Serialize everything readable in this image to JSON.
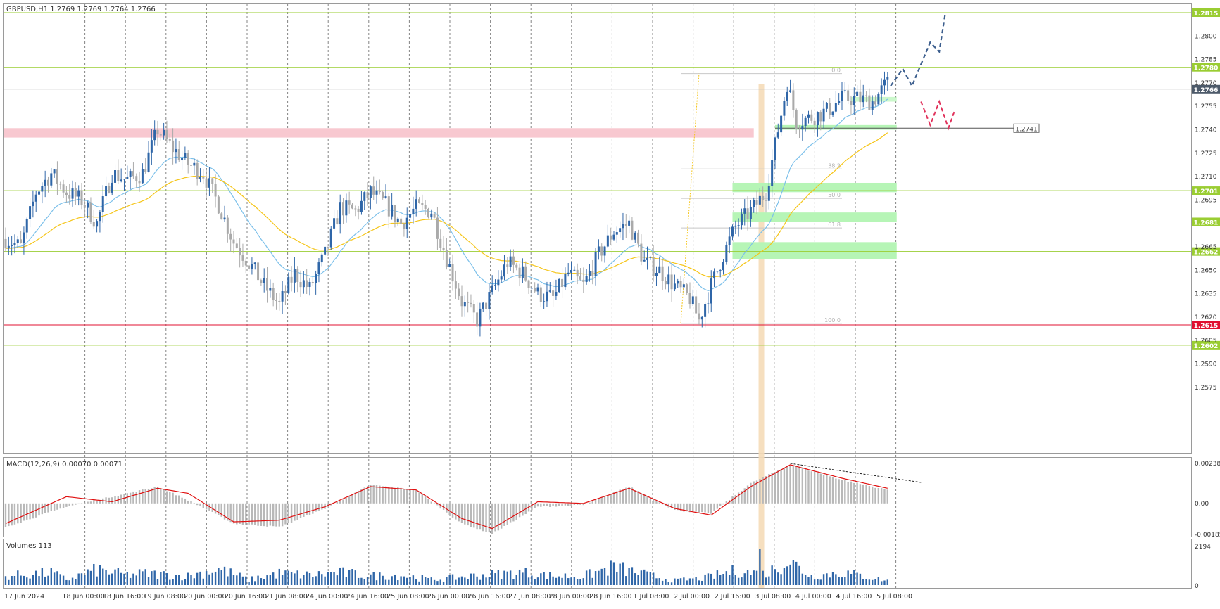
{
  "header": {
    "symbol_line": "GBPUSD,H1  1.2769 1.2769 1.2764 1.2766"
  },
  "colors": {
    "bull": "#2f66a8",
    "bear": "#aaaaaa",
    "ma_fast": "#7cc0ea",
    "ma_slow": "#f5c518",
    "level_line": "#9acd32",
    "level_red": "#e01030",
    "current_price": "#4d5a6a",
    "zone_green": "#b6f5b6",
    "zone_pink": "#f8c8d0",
    "macd_signal": "#e01010",
    "macd_hist": "#b8b8b8",
    "volume": "#2f66a8",
    "forecast_up": "#3d5f8e",
    "forecast_down": "#e0305a",
    "highlight_bar": "#f5dcb8"
  },
  "chart_data": [
    {
      "type": "candlestick",
      "name": "main-price",
      "ylim": [
        1.2565,
        1.2825
      ],
      "y_ticks": [
        "1.2800",
        "1.2785",
        "1.2770",
        "1.2755",
        "1.2740",
        "1.2725",
        "1.2710",
        "1.2695",
        "1.2665",
        "1.2650",
        "1.2635",
        "1.2620",
        "1.2605",
        "1.2590",
        "1.2575"
      ],
      "price_levels": [
        {
          "label": "1.2815",
          "value": 1.2815,
          "kind": "green"
        },
        {
          "label": "1.2780",
          "value": 1.278,
          "kind": "green"
        },
        {
          "label": "1.2701",
          "value": 1.2701,
          "kind": "green"
        },
        {
          "label": "1.2681",
          "value": 1.2681,
          "kind": "green"
        },
        {
          "label": "1.2662",
          "value": 1.2662,
          "kind": "green"
        },
        {
          "label": "1.2615",
          "value": 1.2615,
          "kind": "red"
        },
        {
          "label": "1.2602",
          "value": 1.2602,
          "kind": "green"
        }
      ],
      "current_price": {
        "label": "1.2766",
        "value": 1.2766
      },
      "marked_level": {
        "label": "1.2741",
        "value": 1.2741
      },
      "x_labels": [
        "17 Jun 2024",
        "18 Jun 00:00",
        "18 Jun 16:00",
        "19 Jun 08:00",
        "20 Jun 00:00",
        "20 Jun 16:00",
        "21 Jun 08:00",
        "24 Jun 00:00",
        "24 Jun 16:00",
        "25 Jun 08:00",
        "26 Jun 00:00",
        "26 Jun 16:00",
        "27 Jun 08:00",
        "28 Jun 00:00",
        "28 Jun 16:00",
        "1 Jul 08:00",
        "2 Jul 00:00",
        "2 Jul 16:00",
        "3 Jul 08:00",
        "4 Jul 00:00",
        "4 Jul 16:00",
        "5 Jul 08:00"
      ],
      "fibonacci": {
        "levels": [
          "0.0",
          "38.2",
          "50.0",
          "61.8",
          "100.0"
        ],
        "high": 1.2776,
        "low": 1.2616
      },
      "close_path": [
        [
          0,
          1.267
        ],
        [
          5,
          1.2665
        ],
        [
          10,
          1.27
        ],
        [
          15,
          1.2712
        ],
        [
          20,
          1.27
        ],
        [
          25,
          1.2695
        ],
        [
          30,
          1.268
        ],
        [
          35,
          1.2712
        ],
        [
          40,
          1.2708
        ],
        [
          45,
          1.2712
        ],
        [
          50,
          1.274
        ],
        [
          55,
          1.2728
        ],
        [
          60,
          1.2718
        ],
        [
          65,
          1.2712
        ],
        [
          70,
          1.2692
        ],
        [
          75,
          1.2668
        ],
        [
          80,
          1.2655
        ],
        [
          85,
          1.264
        ],
        [
          90,
          1.2628
        ],
        [
          95,
          1.2648
        ],
        [
          100,
          1.2638
        ],
        [
          105,
          1.266
        ],
        [
          110,
          1.269
        ],
        [
          115,
          1.2688
        ],
        [
          120,
          1.27
        ],
        [
          125,
          1.2692
        ],
        [
          130,
          1.268
        ],
        [
          135,
          1.269
        ],
        [
          140,
          1.2688
        ],
        [
          145,
          1.2658
        ],
        [
          150,
          1.263
        ],
        [
          155,
          1.2618
        ],
        [
          160,
          1.2636
        ],
        [
          165,
          1.2655
        ],
        [
          170,
          1.2648
        ],
        [
          175,
          1.2635
        ],
        [
          180,
          1.2632
        ],
        [
          185,
          1.2648
        ],
        [
          190,
          1.264
        ],
        [
          195,
          1.266
        ],
        [
          200,
          1.2675
        ],
        [
          205,
          1.268
        ],
        [
          210,
          1.2655
        ],
        [
          215,
          1.265
        ],
        [
          220,
          1.264
        ],
        [
          225,
          1.2632
        ],
        [
          228,
          1.2618
        ],
        [
          232,
          1.264
        ],
        [
          236,
          1.266
        ],
        [
          240,
          1.2678
        ],
        [
          245,
          1.2688
        ],
        [
          250,
          1.27
        ],
        [
          254,
          1.274
        ],
        [
          257,
          1.277
        ],
        [
          260,
          1.2745
        ],
        [
          265,
          1.2748
        ],
        [
          270,
          1.2752
        ],
        [
          275,
          1.276
        ],
        [
          280,
          1.276
        ],
        [
          285,
          1.2758
        ],
        [
          290,
          1.277
        ]
      ],
      "forecast_up": [
        [
          291,
          1.2768
        ],
        [
          295,
          1.2779
        ],
        [
          298,
          1.2768
        ],
        [
          304,
          1.2796
        ],
        [
          307,
          1.279
        ],
        [
          309,
          1.2815
        ]
      ],
      "forecast_down": [
        [
          301,
          1.2758
        ],
        [
          304,
          1.2743
        ],
        [
          307,
          1.2758
        ],
        [
          310,
          1.2741
        ],
        [
          312,
          1.2752
        ]
      ]
    },
    {
      "type": "macd",
      "name": "MACD(12,26,9)",
      "label": "MACD(12,26,9)  0.00070 0.00071",
      "ylim": [
        -0.00185,
        0.00238
      ],
      "y_ticks": [
        "0.00238",
        "0.00",
        "-0.00185"
      ],
      "hist_path": [
        [
          0,
          -0.0014
        ],
        [
          20,
          -0.0002
        ],
        [
          35,
          0.0004
        ],
        [
          50,
          0.001
        ],
        [
          60,
          0.0002
        ],
        [
          75,
          -0.0012
        ],
        [
          90,
          -0.0014
        ],
        [
          105,
          -0.0003
        ],
        [
          120,
          0.0011
        ],
        [
          135,
          0.0008
        ],
        [
          150,
          -0.0012
        ],
        [
          160,
          -0.0018
        ],
        [
          175,
          -0.0002
        ],
        [
          190,
          -0.0001
        ],
        [
          205,
          0.001
        ],
        [
          220,
          -0.0004
        ],
        [
          232,
          -0.0006
        ],
        [
          245,
          0.0012
        ],
        [
          258,
          0.0023
        ],
        [
          275,
          0.0014
        ],
        [
          290,
          0.0008
        ]
      ],
      "signal_path": [
        [
          0,
          -0.0012
        ],
        [
          20,
          0.0004
        ],
        [
          35,
          0.0001
        ],
        [
          50,
          0.0009
        ],
        [
          60,
          0.0006
        ],
        [
          75,
          -0.0011
        ],
        [
          90,
          -0.001
        ],
        [
          105,
          -0.0002
        ],
        [
          120,
          0.001
        ],
        [
          135,
          0.0008
        ],
        [
          150,
          -0.0009
        ],
        [
          160,
          -0.0015
        ],
        [
          175,
          0.0001
        ],
        [
          190,
          0.0
        ],
        [
          205,
          0.0009
        ],
        [
          220,
          -0.0003
        ],
        [
          232,
          -0.0007
        ],
        [
          245,
          0.001
        ],
        [
          258,
          0.0023
        ],
        [
          275,
          0.0015
        ],
        [
          290,
          0.0009
        ]
      ],
      "divergence_line": [
        [
          258,
          0.00238
        ],
        [
          301,
          0.00125
        ]
      ]
    },
    {
      "type": "bar",
      "name": "Volumes",
      "label": "Volumes 113",
      "ylim": [
        0,
        2194
      ],
      "y_ticks": [
        "2194",
        "0"
      ],
      "volume_path": [
        [
          0,
          500
        ],
        [
          15,
          700
        ],
        [
          20,
          300
        ],
        [
          30,
          850
        ],
        [
          40,
          550
        ],
        [
          45,
          650
        ],
        [
          60,
          500
        ],
        [
          70,
          900
        ],
        [
          80,
          300
        ],
        [
          90,
          650
        ],
        [
          100,
          550
        ],
        [
          110,
          700
        ],
        [
          120,
          500
        ],
        [
          130,
          550
        ],
        [
          140,
          300
        ],
        [
          150,
          450
        ],
        [
          160,
          600
        ],
        [
          170,
          700
        ],
        [
          180,
          500
        ],
        [
          190,
          500
        ],
        [
          200,
          1000
        ],
        [
          210,
          600
        ],
        [
          220,
          250
        ],
        [
          230,
          400
        ],
        [
          240,
          800
        ],
        [
          250,
          600
        ],
        [
          257,
          1400
        ],
        [
          265,
          500
        ],
        [
          275,
          700
        ],
        [
          285,
          400
        ],
        [
          290,
          250
        ]
      ]
    }
  ]
}
